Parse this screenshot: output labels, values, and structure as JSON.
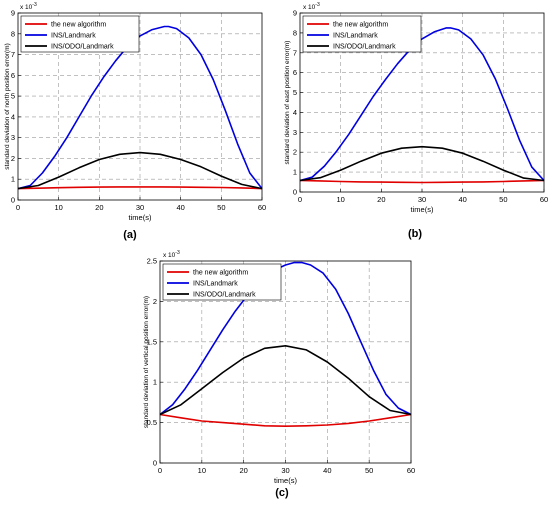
{
  "chart_data": [
    {
      "type": "line",
      "panel_label": "(a)",
      "xlabel": "time(s)",
      "ylabel": "standard deviation  of north position error(m)",
      "exponent_label": "x 10",
      "exponent_power": "-3",
      "xlim": [
        0,
        60
      ],
      "ylim": [
        0,
        9
      ],
      "xticks": [
        0,
        10,
        20,
        30,
        40,
        50,
        60
      ],
      "yticks": [
        0,
        1,
        2,
        3,
        4,
        5,
        6,
        7,
        8,
        9
      ],
      "grid": true,
      "legend_position": "top-left",
      "series": [
        {
          "name": "the new algorithm",
          "color": "#e00000",
          "x": [
            0,
            5,
            10,
            15,
            20,
            25,
            30,
            35,
            40,
            45,
            50,
            55,
            60
          ],
          "y": [
            0.55,
            0.57,
            0.59,
            0.61,
            0.62,
            0.63,
            0.63,
            0.63,
            0.62,
            0.61,
            0.6,
            0.58,
            0.55
          ]
        },
        {
          "name": "INS/Landmark",
          "color": "#0000e0",
          "x": [
            0,
            3,
            6,
            9,
            12,
            15,
            18,
            21,
            24,
            27,
            30,
            33,
            36,
            37,
            39,
            42,
            45,
            48,
            51,
            54,
            57,
            60
          ],
          "y": [
            0.55,
            0.7,
            1.3,
            2.1,
            3.0,
            4.0,
            5.0,
            5.9,
            6.7,
            7.4,
            7.9,
            8.2,
            8.35,
            8.35,
            8.25,
            7.8,
            7.0,
            5.8,
            4.3,
            2.7,
            1.3,
            0.55
          ]
        },
        {
          "name": "INS/ODO/Landmark",
          "color": "#000000",
          "x": [
            0,
            5,
            10,
            15,
            20,
            25,
            30,
            35,
            40,
            45,
            50,
            55,
            60
          ],
          "y": [
            0.55,
            0.7,
            1.1,
            1.55,
            1.95,
            2.2,
            2.28,
            2.2,
            1.95,
            1.6,
            1.15,
            0.75,
            0.55
          ]
        }
      ]
    },
    {
      "type": "line",
      "panel_label": "(b)",
      "xlabel": "time(s)",
      "ylabel": "standard deviation  of east position error(m)",
      "exponent_label": "x 10",
      "exponent_power": "-3",
      "xlim": [
        0,
        60
      ],
      "ylim": [
        0,
        9
      ],
      "xticks": [
        0,
        10,
        20,
        30,
        40,
        50,
        60
      ],
      "yticks": [
        0,
        1,
        2,
        3,
        4,
        5,
        6,
        7,
        8,
        9
      ],
      "grid": true,
      "legend_position": "top-left",
      "series": [
        {
          "name": "the new algorithm",
          "color": "#e00000",
          "x": [
            0,
            5,
            10,
            15,
            20,
            25,
            30,
            35,
            40,
            45,
            50,
            55,
            60
          ],
          "y": [
            0.58,
            0.56,
            0.53,
            0.51,
            0.5,
            0.49,
            0.48,
            0.49,
            0.5,
            0.51,
            0.53,
            0.56,
            0.58
          ]
        },
        {
          "name": "INS/Landmark",
          "color": "#0000e0",
          "x": [
            0,
            3,
            6,
            9,
            12,
            15,
            18,
            21,
            24,
            27,
            30,
            33,
            36,
            37,
            39,
            42,
            45,
            48,
            51,
            54,
            57,
            60
          ],
          "y": [
            0.58,
            0.75,
            1.3,
            2.05,
            2.9,
            3.85,
            4.8,
            5.65,
            6.45,
            7.15,
            7.7,
            8.05,
            8.25,
            8.25,
            8.15,
            7.7,
            6.9,
            5.7,
            4.2,
            2.6,
            1.25,
            0.58
          ]
        },
        {
          "name": "INS/ODO/Landmark",
          "color": "#000000",
          "x": [
            0,
            5,
            10,
            15,
            20,
            25,
            30,
            35,
            40,
            45,
            50,
            55,
            60
          ],
          "y": [
            0.58,
            0.72,
            1.1,
            1.55,
            1.95,
            2.2,
            2.28,
            2.2,
            1.95,
            1.55,
            1.1,
            0.7,
            0.58
          ]
        }
      ]
    },
    {
      "type": "line",
      "panel_label": "(c)",
      "xlabel": "time(s)",
      "ylabel": "standard deviation  of vertical position error(m)",
      "exponent_label": "x 10",
      "exponent_power": "-3",
      "xlim": [
        0,
        60
      ],
      "ylim": [
        0,
        2.5
      ],
      "xticks": [
        0,
        10,
        20,
        30,
        40,
        50,
        60
      ],
      "yticks": [
        0,
        0.5,
        1,
        1.5,
        2,
        2.5
      ],
      "grid": true,
      "legend_position": "top-left",
      "series": [
        {
          "name": "the new algorithm",
          "color": "#e00000",
          "x": [
            0,
            5,
            10,
            15,
            20,
            25,
            30,
            35,
            40,
            45,
            50,
            55,
            60
          ],
          "y": [
            0.6,
            0.56,
            0.52,
            0.5,
            0.48,
            0.46,
            0.455,
            0.46,
            0.47,
            0.49,
            0.52,
            0.56,
            0.6
          ]
        },
        {
          "name": "INS/Landmark",
          "color": "#0000e0",
          "x": [
            0,
            3,
            6,
            9,
            12,
            15,
            18,
            21,
            24,
            27,
            30,
            32,
            34,
            36,
            39,
            42,
            45,
            48,
            51,
            54,
            57,
            60
          ],
          "y": [
            0.6,
            0.72,
            0.92,
            1.15,
            1.4,
            1.65,
            1.88,
            2.08,
            2.25,
            2.38,
            2.45,
            2.48,
            2.48,
            2.45,
            2.35,
            2.15,
            1.85,
            1.5,
            1.15,
            0.85,
            0.68,
            0.6
          ]
        },
        {
          "name": "INS/ODO/Landmark",
          "color": "#000000",
          "x": [
            0,
            5,
            10,
            15,
            20,
            25,
            30,
            35,
            40,
            45,
            50,
            55,
            60
          ],
          "y": [
            0.6,
            0.72,
            0.92,
            1.12,
            1.3,
            1.42,
            1.45,
            1.4,
            1.25,
            1.05,
            0.82,
            0.65,
            0.6
          ]
        }
      ]
    }
  ]
}
